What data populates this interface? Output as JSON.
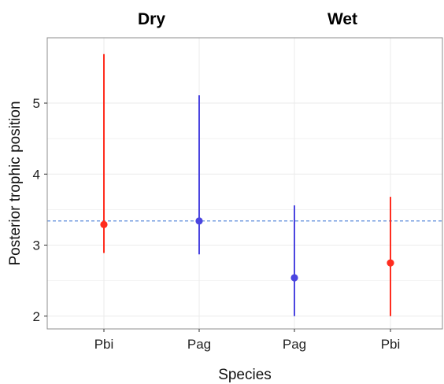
{
  "chart_data": {
    "type": "scatter",
    "subtype": "point-range",
    "panels": [
      {
        "title": "Dry",
        "categories": [
          "Pbi",
          "Pag"
        ]
      },
      {
        "title": "Wet",
        "categories": [
          "Pag",
          "Pbi"
        ]
      }
    ],
    "categories": [
      "Pbi",
      "Pag",
      "Pag",
      "Pbi"
    ],
    "points": [
      {
        "panel": "Dry",
        "species": "Pbi",
        "y": 3.29,
        "low": 2.89,
        "high": 5.69,
        "color": "#ff2d1f"
      },
      {
        "panel": "Dry",
        "species": "Pag",
        "y": 3.34,
        "low": 2.87,
        "high": 5.11,
        "color": "#4b45e0"
      },
      {
        "panel": "Wet",
        "species": "Pag",
        "y": 2.54,
        "low": 2.0,
        "high": 3.56,
        "color": "#4b45e0"
      },
      {
        "panel": "Wet",
        "species": "Pbi",
        "y": 2.75,
        "low": 2.0,
        "high": 3.68,
        "color": "#ff2d1f"
      }
    ],
    "reference_line": {
      "y": 3.34,
      "style": "dashed",
      "color": "#4a7fd6"
    },
    "yticks": [
      2,
      3,
      4,
      5
    ],
    "ylim": [
      1.82,
      5.92
    ],
    "xlabel": "Species",
    "ylabel": "Posterior trophic position",
    "grid": true,
    "legend": "none",
    "colors": {
      "Pbi": "#ff2d1f",
      "Pag": "#4b45e0",
      "grid": "#ebebeb",
      "panel_border": "#8c8c8c"
    }
  }
}
